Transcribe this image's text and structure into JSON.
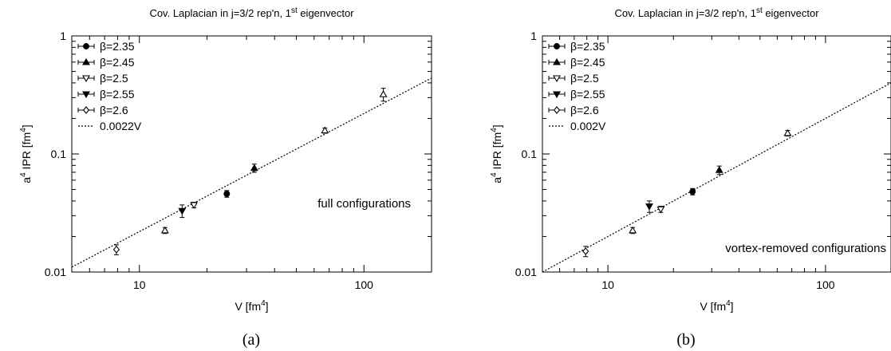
{
  "chart_data": [
    {
      "panel_id": "a",
      "type": "scatter",
      "title": "Cov. Laplacian in j=3/2 rep'n, 1st eigenvector",
      "title_main": "Cov. Laplacian in j=3/2 rep'n, 1",
      "title_sup": "st",
      "title_rest": " eigenvector",
      "xlabel": "V [fm4]",
      "xlabel_main": "V [fm",
      "xlabel_sup": "4",
      "xlabel_end": "]",
      "ylabel": "a4 IPR [fm4]",
      "ylabel_pre": "a",
      "ylabel_sup1": "4",
      "ylabel_mid": " IPR [fm",
      "ylabel_sup2": "4",
      "ylabel_end": "]",
      "xscale": "log",
      "yscale": "log",
      "xlim": [
        5,
        200
      ],
      "ylim": [
        0.01,
        1
      ],
      "xticks": [
        {
          "v": 10,
          "label": "10"
        },
        {
          "v": 100,
          "label": "100"
        }
      ],
      "yticks": [
        {
          "v": 0.01,
          "label": "0.01"
        },
        {
          "v": 0.1,
          "label": "0.1"
        },
        {
          "v": 1,
          "label": "1"
        }
      ],
      "legend_position": "top-left",
      "annotation": "full configurations",
      "annotation_position": "center-right",
      "caption": "(a)",
      "series": [
        {
          "name": "β=2.35",
          "marker": "filled-circle",
          "points": [
            {
              "x": 24.5,
              "y": 0.046,
              "err": 0.003
            }
          ]
        },
        {
          "name": "β=2.45",
          "marker": "filled-triangle-up",
          "points": [
            {
              "x": 32.5,
              "y": 0.076,
              "err": 0.006
            }
          ]
        },
        {
          "name": "β=2.5",
          "marker": "open-triangle-down",
          "points": [
            {
              "x": 17.5,
              "y": 0.037,
              "err": 0.002
            }
          ]
        },
        {
          "name": "β=2.55",
          "marker": "filled-triangle-down",
          "points": [
            {
              "x": 15.5,
              "y": 0.033,
              "err": 0.004
            }
          ]
        },
        {
          "name": "β=2.6",
          "marker": "open-diamond",
          "points": [
            {
              "x": 7.9,
              "y": 0.0155,
              "err": 0.0015
            }
          ]
        },
        {
          "name": "",
          "marker": "open-triangle-up",
          "points": [
            {
              "x": 13,
              "y": 0.0225,
              "err": 0.0013
            },
            {
              "x": 67,
              "y": 0.158,
              "err": 0.008
            },
            {
              "x": 122,
              "y": 0.32,
              "err": 0.04
            }
          ]
        }
      ],
      "fit": {
        "name": "0.0022V",
        "coef": 0.0022
      }
    },
    {
      "panel_id": "b",
      "type": "scatter",
      "title": "Cov. Laplacian in j=3/2 rep'n, 1st eigenvector",
      "title_main": "Cov. Laplacian in j=3/2 rep'n, 1",
      "title_sup": "st",
      "title_rest": " eigenvector",
      "xlabel": "V [fm4]",
      "xlabel_main": "V [fm",
      "xlabel_sup": "4",
      "xlabel_end": "]",
      "ylabel": "a4 IPR [fm4]",
      "ylabel_pre": "a",
      "ylabel_sup1": "4",
      "ylabel_mid": " IPR [fm",
      "ylabel_sup2": "4",
      "ylabel_end": "]",
      "xscale": "log",
      "yscale": "log",
      "xlim": [
        5,
        200
      ],
      "ylim": [
        0.01,
        1
      ],
      "xticks": [
        {
          "v": 10,
          "label": "10"
        },
        {
          "v": 100,
          "label": "100"
        }
      ],
      "yticks": [
        {
          "v": 0.01,
          "label": "0.01"
        },
        {
          "v": 0.1,
          "label": "0.1"
        },
        {
          "v": 1,
          "label": "1"
        }
      ],
      "legend_position": "top-left",
      "annotation": "vortex-removed configurations",
      "annotation_position": "bottom-right",
      "caption": "(b)",
      "series": [
        {
          "name": "β=2.35",
          "marker": "filled-circle",
          "points": [
            {
              "x": 24.5,
              "y": 0.048,
              "err": 0.003
            }
          ]
        },
        {
          "name": "β=2.45",
          "marker": "filled-triangle-up",
          "points": [
            {
              "x": 32.5,
              "y": 0.073,
              "err": 0.006
            }
          ]
        },
        {
          "name": "β=2.5",
          "marker": "open-triangle-down",
          "points": [
            {
              "x": 17.5,
              "y": 0.034,
              "err": 0.002
            }
          ]
        },
        {
          "name": "β=2.55",
          "marker": "filled-triangle-down",
          "points": [
            {
              "x": 15.5,
              "y": 0.036,
              "err": 0.004
            }
          ]
        },
        {
          "name": "β=2.6",
          "marker": "open-diamond",
          "points": [
            {
              "x": 7.9,
              "y": 0.015,
              "err": 0.0015
            }
          ]
        },
        {
          "name": "",
          "marker": "open-triangle-up",
          "points": [
            {
              "x": 13,
              "y": 0.0225,
              "err": 0.0013
            },
            {
              "x": 67,
              "y": 0.15,
              "err": 0.008
            }
          ]
        }
      ],
      "fit": {
        "name": "0.002V",
        "coef": 0.002
      }
    }
  ]
}
